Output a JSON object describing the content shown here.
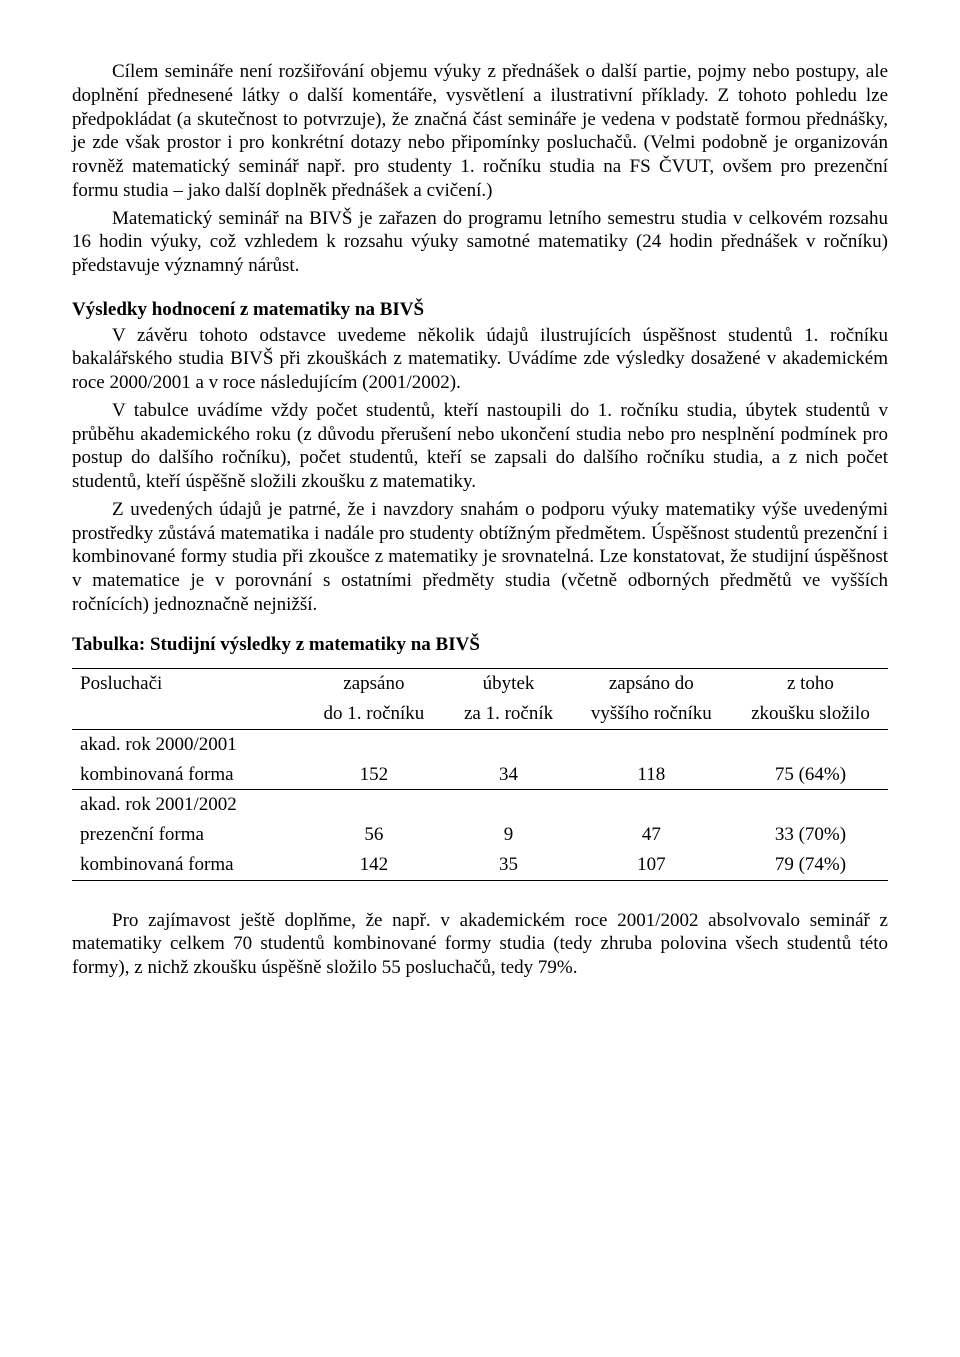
{
  "para1": "Cílem semináře není rozšiřování objemu výuky z přednášek o další partie, pojmy nebo postupy, ale doplnění přednesené látky o další komentáře, vysvětlení a ilustrativní příklady. Z tohoto pohledu lze předpokládat (a skutečnost to potvrzuje), že značná část semináře je vedena v podstatě formou přednášky, je zde však prostor i pro konkrétní dotazy nebo připomínky posluchačů. (Velmi podobně je organizován rovněž matematický seminář např. pro studenty 1. ročníku studia na FS ČVUT, ovšem pro prezenční formu studia – jako další doplněk přednášek a cvičení.)",
  "para2": "Matematický seminář na BIVŠ je zařazen do programu letního semestru studia v celkovém rozsahu 16 hodin výuky, což vzhledem k rozsahu výuky samotné matematiky (24 hodin přednášek v ročníku) představuje významný nárůst.",
  "heading_results": "Výsledky hodnocení z matematiky na BIVŠ",
  "para3": "V závěru tohoto odstavce uvedeme několik údajů ilustrujících úspěšnost studentů 1. ročníku bakalářského studia BIVŠ při zkouškách z matematiky. Uvádíme zde výsledky dosažené v akademickém roce 2000/2001 a v roce následujícím (2001/2002).",
  "para4": "V tabulce uvádíme vždy počet studentů, kteří nastoupili do 1. ročníku studia, úbytek studentů v průběhu akademického roku (z důvodu přerušení nebo ukončení studia nebo pro nesplnění podmínek pro postup do dalšího ročníku), počet studentů, kteří se zapsali do dalšího ročníku studia, a z nich počet studentů, kteří úspěšně složili zkoušku z matematiky.",
  "para5": "Z uvedených údajů je patrné, že i navzdory snahám o podporu výuky matematiky výše uvedenými prostředky zůstává matematika i nadále pro studenty obtížným předmětem. Úspěšnost studentů prezenční i kombinované formy studia při zkoušce z matematiky je srovnatelná. Lze konstatovat, že studijní úspěšnost v matematice je v porovnání s ostatními předměty studia (včetně odborných předmětů ve vyšších ročnících) jednoznačně nejnižší.",
  "table_caption": "Tabulka: Studijní výsledky z matematiky na BIVŠ",
  "table": {
    "header": {
      "c1": "Posluchači",
      "c2a": "zapsáno",
      "c2b": "do 1. ročníku",
      "c3a": "úbytek",
      "c3b": "za 1. ročník",
      "c4a": "zapsáno do",
      "c4b": "vyššího ročníku",
      "c5a": "z toho",
      "c5b": "zkoušku složilo"
    },
    "rows": [
      {
        "label": "akad. rok 2000/2001",
        "c2": "",
        "c3": "",
        "c4": "",
        "c5": ""
      },
      {
        "label": "kombinovaná forma",
        "c2": "152",
        "c3": "34",
        "c4": "118",
        "c5": "75 (64%)"
      },
      {
        "label": "akad. rok 2001/2002",
        "c2": "",
        "c3": "",
        "c4": "",
        "c5": ""
      },
      {
        "label": "prezenční forma",
        "c2": "56",
        "c3": "9",
        "c4": "47",
        "c5": "33 (70%)"
      },
      {
        "label": "kombinovaná forma",
        "c2": "142",
        "c3": "35",
        "c4": "107",
        "c5": "79 (74%)"
      }
    ]
  },
  "para6": "Pro zajímavost ještě doplňme, že např. v akademickém roce 2001/2002 absolvovalo seminář z matematiky celkem 70 studentů kombinované formy studia (tedy zhruba polovina všech studentů této formy), z nichž zkoušku úspěšně složilo 55 posluchačů, tedy 79%."
}
